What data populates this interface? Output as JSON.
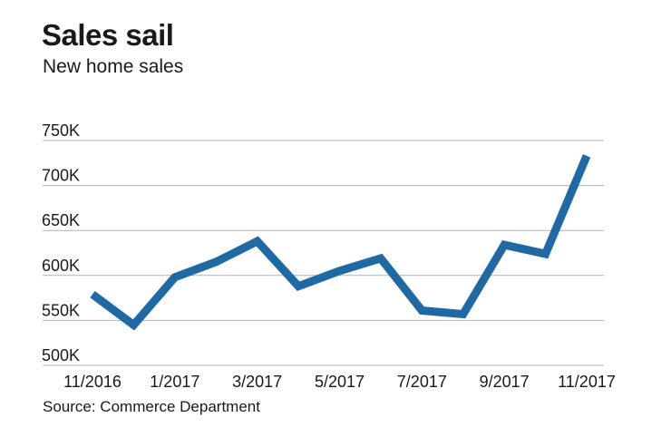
{
  "header": {
    "title": "Sales sail",
    "subtitle": "New home sales"
  },
  "footer": {
    "source": "Source: Commerce Department"
  },
  "chart_data": {
    "type": "line",
    "title": "Sales sail",
    "subtitle": "New home sales",
    "x": [
      "11/2016",
      "12/2016",
      "1/2017",
      "2/2017",
      "3/2017",
      "4/2017",
      "5/2017",
      "6/2017",
      "7/2017",
      "8/2017",
      "9/2017",
      "10/2017",
      "11/2017"
    ],
    "x_tick_labels": [
      "11/2016",
      "1/2017",
      "3/2017",
      "5/2017",
      "7/2017",
      "9/2017",
      "11/2017"
    ],
    "values": [
      579,
      545,
      598,
      615,
      638,
      588,
      605,
      619,
      561,
      557,
      634,
      624,
      733
    ],
    "ylim": [
      500,
      750
    ],
    "y_ticks": [
      500,
      550,
      600,
      650,
      700,
      750
    ],
    "y_tick_labels": [
      "500K",
      "550K",
      "600K",
      "650K",
      "700K",
      "750K"
    ],
    "grid": true,
    "line_color": "#1f6aa5",
    "grid_color": "#b3b3b3"
  }
}
